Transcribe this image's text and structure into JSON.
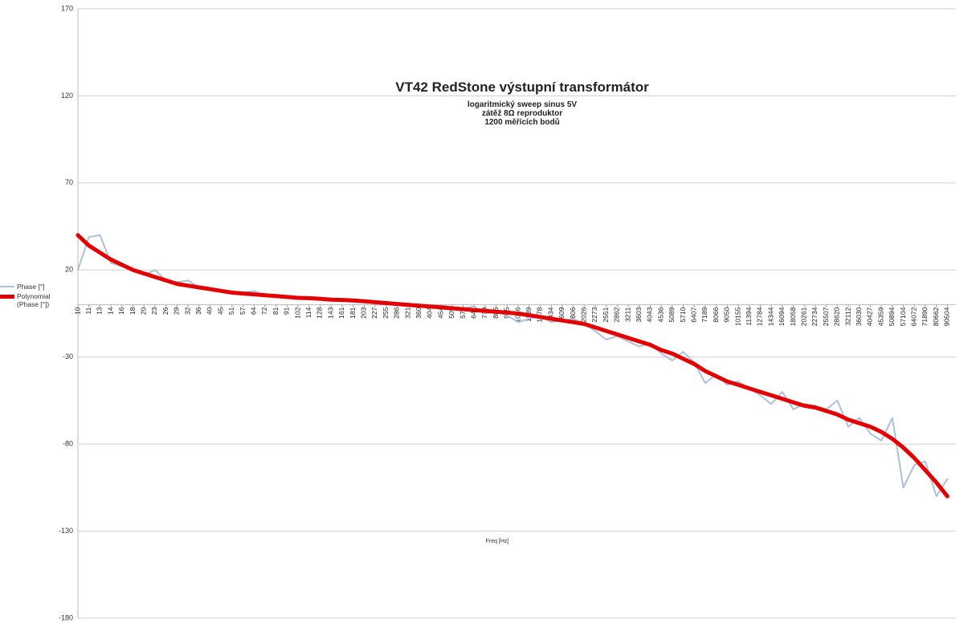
{
  "chart_data": {
    "type": "line",
    "title": "VT42 RedStone výstupní transformátor",
    "subtitle": [
      "logaritmický sweep sinus 5V",
      "zátěž 8Ω reproduktor",
      "1200 měřících bodů"
    ],
    "x_label": "Freq [Hz]",
    "categories": [
      "10",
      "11",
      "13",
      "14",
      "16",
      "18",
      "20",
      "23",
      "26",
      "29",
      "32",
      "36",
      "40",
      "45",
      "51",
      "57",
      "64",
      "72",
      "81",
      "91",
      "102",
      "114",
      "128",
      "143",
      "161",
      "181",
      "203",
      "227",
      "255",
      "286",
      "321",
      "360",
      "404",
      "454",
      "509",
      "571",
      "641",
      "719",
      "806",
      "905",
      "1016",
      "1139",
      "1278",
      "1434",
      "1609",
      "1806",
      "2026",
      "2273",
      "2551",
      "2862",
      "3211",
      "3603",
      "4043",
      "4536",
      "5089",
      "5710",
      "6407",
      "7189",
      "8066",
      "9050",
      "10155",
      "11394",
      "12784",
      "14344",
      "16094",
      "18058",
      "20261",
      "22734",
      "25507",
      "28620",
      "32112",
      "36030",
      "40427",
      "45359",
      "50894",
      "57104",
      "64072",
      "71890",
      "80662",
      "90504"
    ],
    "series": [
      {
        "name": "Phase [°]",
        "color": "#aebfd6",
        "width": 2,
        "values": [
          20,
          39,
          40,
          24,
          22,
          20,
          17,
          20,
          14,
          13,
          14,
          10,
          9,
          8,
          7,
          7,
          8,
          5,
          5,
          4,
          4,
          4,
          4,
          3,
          2,
          2,
          2,
          1,
          1,
          0,
          1,
          -1,
          -1,
          0,
          -2,
          -2,
          -1,
          -5,
          -4,
          -6,
          -10,
          -8,
          -6,
          -10,
          -9,
          -8,
          -11,
          -15,
          -20,
          -18,
          -21,
          -24,
          -22,
          -28,
          -32,
          -27,
          -33,
          -45,
          -40,
          -46,
          -44,
          -48,
          -52,
          -57,
          -50,
          -60,
          -57,
          -58,
          -60,
          -55,
          -70,
          -65,
          -74,
          -78,
          -65,
          -105,
          -92,
          -90,
          -110,
          -100
        ]
      },
      {
        "name": "Polynomial (Phase [°])",
        "color": "#e30000",
        "width": 5,
        "values": [
          40,
          34,
          30,
          26,
          23,
          20,
          18,
          16,
          14,
          12,
          11,
          10,
          9,
          8,
          7,
          6.5,
          6,
          5.5,
          5,
          4.5,
          4,
          3.8,
          3.5,
          3,
          2.8,
          2.5,
          2,
          1.5,
          1,
          0.5,
          0,
          -0.5,
          -1,
          -1.5,
          -2,
          -2.5,
          -3,
          -3.5,
          -4,
          -4.5,
          -5,
          -6,
          -7,
          -8,
          -9,
          -10,
          -11,
          -13,
          -15,
          -17,
          -19,
          -21,
          -23,
          -26,
          -28,
          -31,
          -34,
          -38,
          -41,
          -44,
          -46,
          -48,
          -50,
          -52,
          -54,
          -56,
          -58,
          -59,
          -61,
          -63,
          -66,
          -68,
          -70,
          -73,
          -77,
          -82,
          -88,
          -95,
          -102,
          -110
        ]
      }
    ],
    "ylim": [
      -180,
      170
    ],
    "yticks": [
      -180,
      -130,
      -80,
      -30,
      20,
      70,
      120,
      170
    ],
    "grid": true
  }
}
